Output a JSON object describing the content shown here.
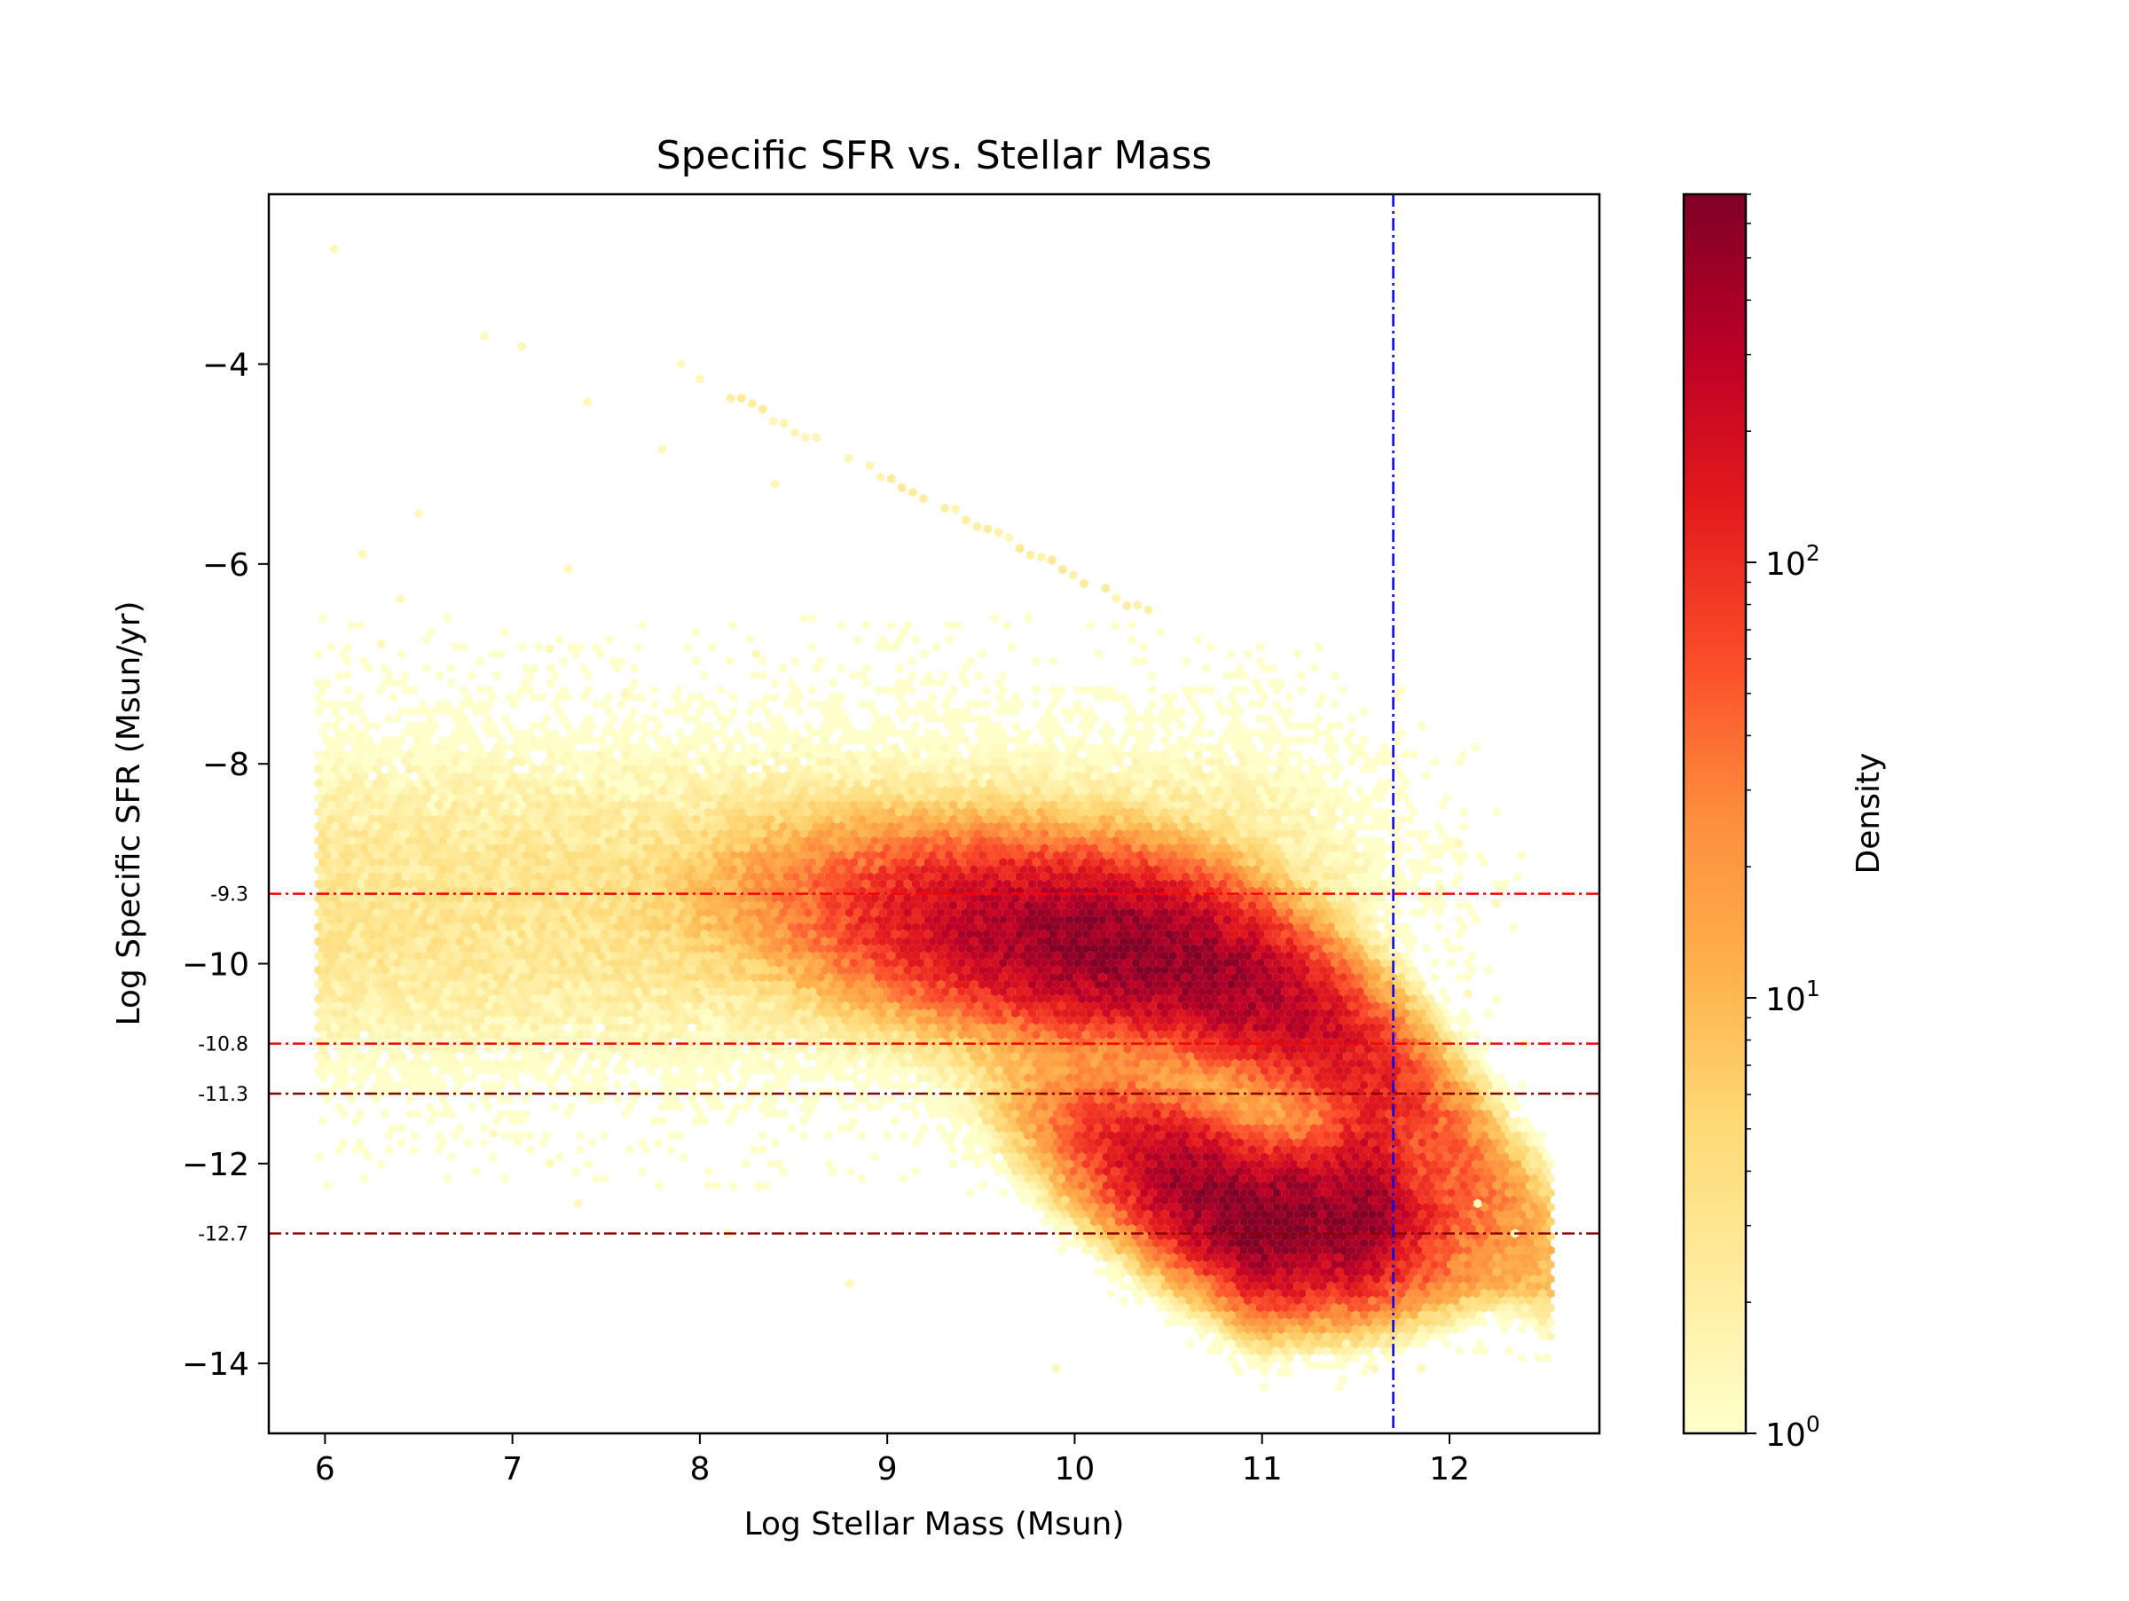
{
  "chart_data": {
    "type": "hexbin",
    "title": "Specific SFR vs. Stellar Mass",
    "xlabel": "Log Stellar Mass (Msun)",
    "ylabel": "Log Specific SFR (Msun/yr)",
    "xlim": [
      5.7,
      12.8
    ],
    "ylim": [
      -14.7,
      -2.3
    ],
    "xticks": [
      6,
      7,
      8,
      9,
      10,
      11,
      12
    ],
    "yticks": [
      -4,
      -6,
      -8,
      -10,
      -12,
      -14
    ],
    "ytick_labels": [
      "−4",
      "−6",
      "−8",
      "−10",
      "−12",
      "−14"
    ],
    "grid": false,
    "reference_lines": {
      "horizontal": [
        {
          "y": -9.3,
          "label": "-9.3",
          "color": "#ff0000",
          "style": "dashdot"
        },
        {
          "y": -10.8,
          "label": "-10.8",
          "color": "#ff0000",
          "style": "dashdot"
        },
        {
          "y": -11.3,
          "label": "-11.3",
          "color": "#8b0000",
          "style": "dashdot"
        },
        {
          "y": -12.7,
          "label": "-12.7",
          "color": "#8b0000",
          "style": "dashdot"
        }
      ],
      "vertical": [
        {
          "x": 11.7,
          "color": "#0000ff",
          "style": "dashdot"
        }
      ]
    },
    "density_features": [
      {
        "description": "star-forming sequence peak",
        "x": 10.4,
        "y": -10.1,
        "density": 500
      },
      {
        "description": "quiescent population peak",
        "x": 11.0,
        "y": -12.2,
        "density": 600
      },
      {
        "description": "diagonal streak",
        "x_range": [
          6.8,
          10.5
        ],
        "y_range": [
          -3.7,
          -6.6
        ]
      }
    ],
    "colorbar": {
      "label": "Density",
      "scale": "log",
      "range": [
        1,
        700
      ],
      "tick_labels": [
        {
          "base": "10",
          "exp": "0",
          "value": 1
        },
        {
          "base": "10",
          "exp": "1",
          "value": 10
        },
        {
          "base": "10",
          "exp": "2",
          "value": 100
        }
      ],
      "cmap": [
        "#ffffcc",
        "#ffeda0",
        "#fed976",
        "#feb24c",
        "#fd8d3c",
        "#fc4e2a",
        "#e31a1c",
        "#bd0026",
        "#800026"
      ]
    }
  }
}
